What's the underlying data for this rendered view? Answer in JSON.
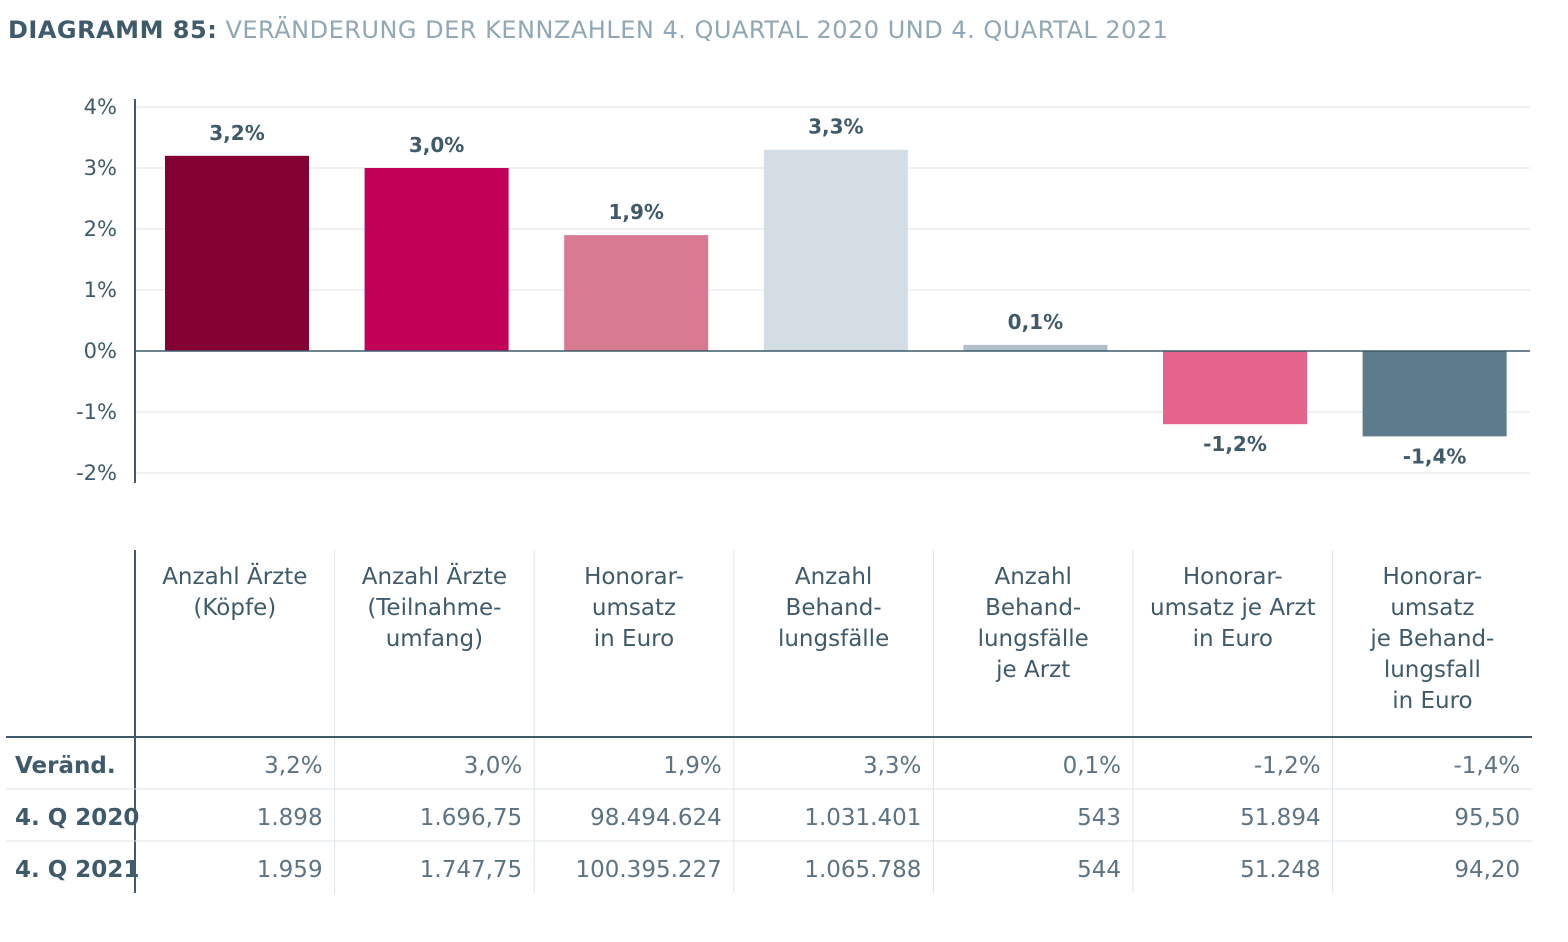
{
  "title": {
    "prefix": "DIAGRAMM 85:",
    "main": "VERÄNDERUNG DER KENNZAHLEN 4. QUARTAL 2020 UND 4. QUARTAL 2021"
  },
  "chart_data": {
    "type": "bar",
    "categories": [
      [
        "Anzahl Ärzte",
        "(Köpfe)"
      ],
      [
        "Anzahl Ärzte",
        "(Teilnahme-",
        "umfang)"
      ],
      [
        "Honorar-",
        "umsatz",
        "in Euro"
      ],
      [
        "Anzahl",
        "Behand-",
        "lungsfälle"
      ],
      [
        "Anzahl",
        "Behand-",
        "lungsfälle",
        "je Arzt"
      ],
      [
        "Honorar-",
        "umsatz je Arzt",
        "in Euro"
      ],
      [
        "Honorar-",
        "umsatz",
        "je Behand-",
        "lungsfall",
        "in Euro"
      ]
    ],
    "values": [
      3.2,
      3.0,
      1.9,
      3.3,
      0.1,
      -1.2,
      -1.4
    ],
    "value_labels": [
      "3,2%",
      "3,0%",
      "1,9%",
      "3,3%",
      "0,1%",
      "-1,2%",
      "-1,4%"
    ],
    "colors": [
      "#850033",
      "#c20058",
      "#d97a93",
      "#d3dde3",
      "#afbec8",
      "#e4648c",
      "#5e7b8b"
    ],
    "yticks": [
      4,
      3,
      2,
      1,
      0,
      -1,
      -2
    ],
    "ytick_labels": [
      "4%",
      "3%",
      "2%",
      "1%",
      "0%",
      "-1%",
      "-2%"
    ],
    "ylim": [
      -2,
      4
    ],
    "grid": true,
    "table": {
      "rows": [
        {
          "label": "Veränd.",
          "values": [
            "3,2%",
            "3,0%",
            "1,9%",
            "3,3%",
            "0,1%",
            "-1,2%",
            "-1,4%"
          ]
        },
        {
          "label": "4. Q 2020",
          "values": [
            "1.898",
            "1.696,75",
            "98.494.624",
            "1.031.401",
            "543",
            "51.894",
            "95,50"
          ]
        },
        {
          "label": "4. Q 2021",
          "values": [
            "1.959",
            "1.747,75",
            "100.395.227",
            "1.065.788",
            "544",
            "51.248",
            "94,20"
          ]
        }
      ]
    }
  }
}
